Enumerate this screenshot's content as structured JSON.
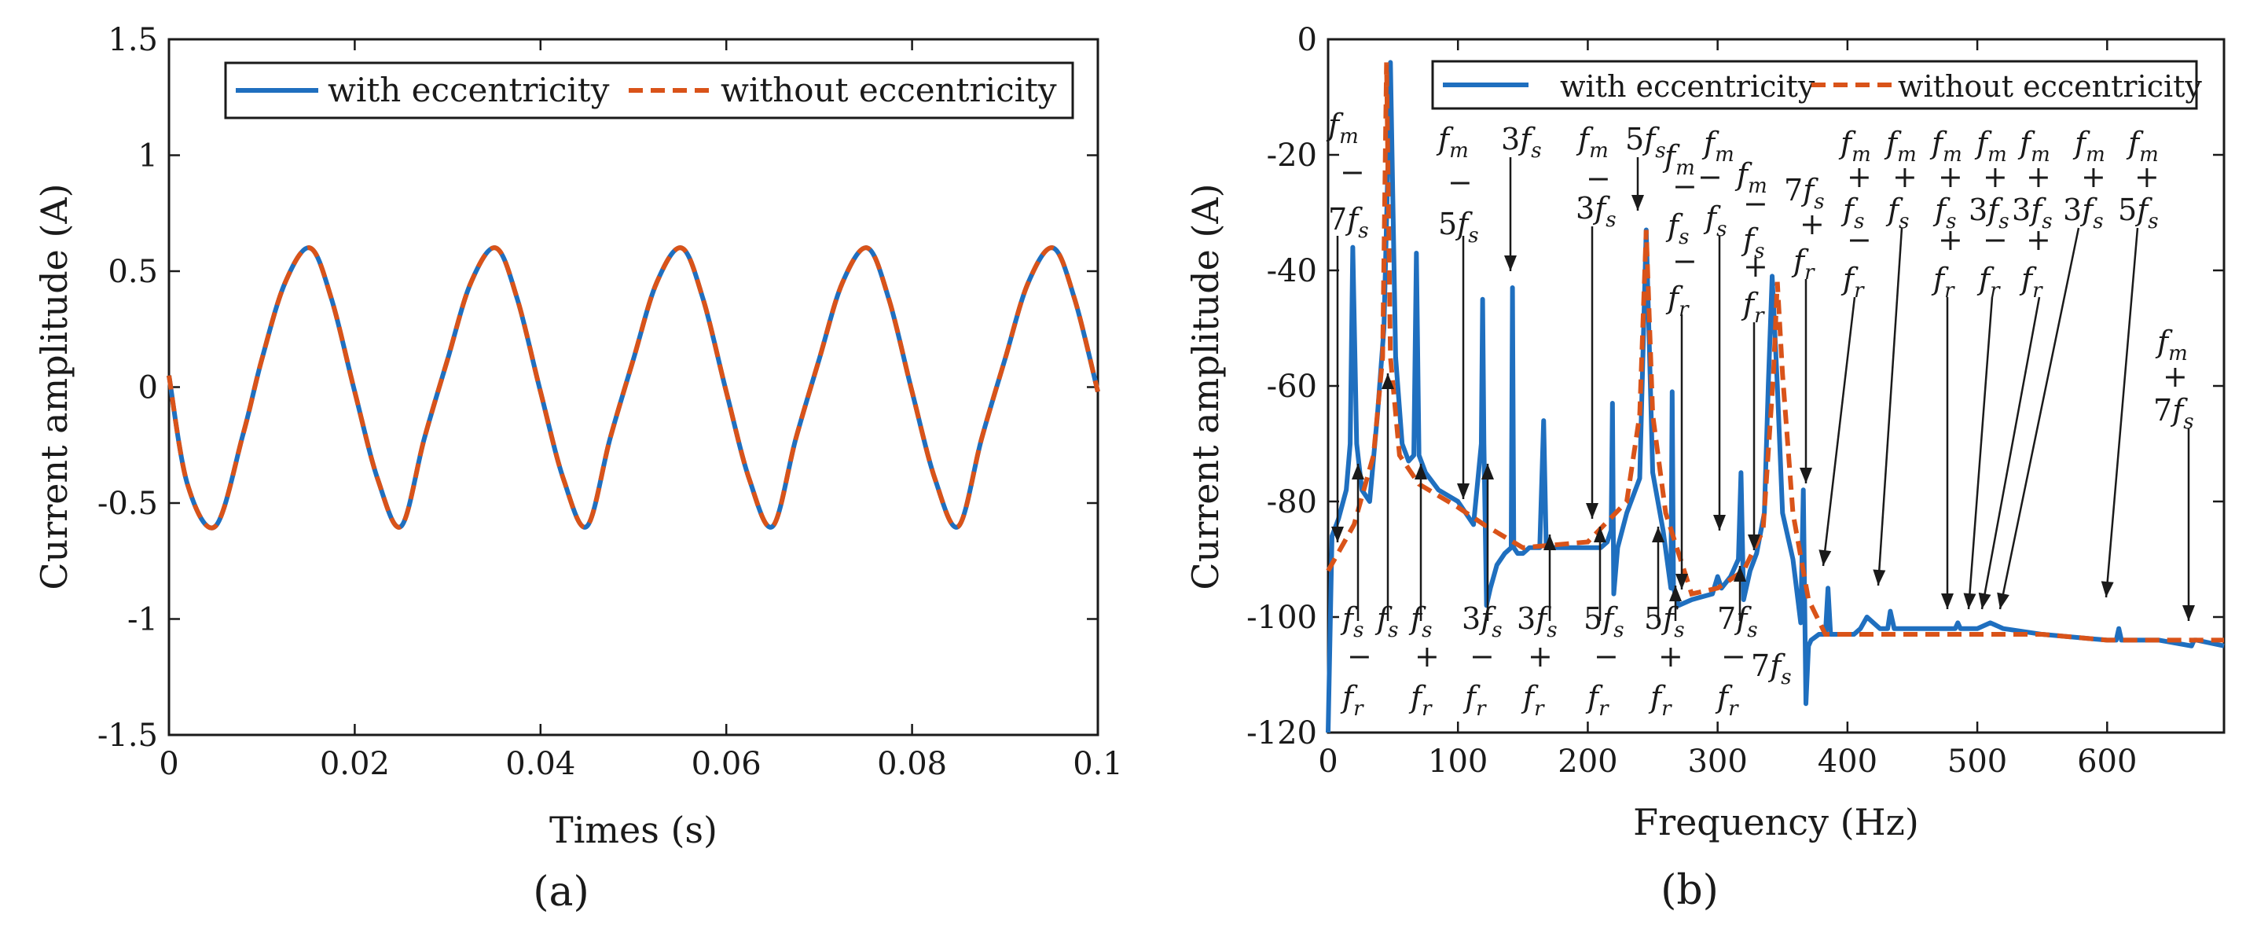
{
  "chart_data": [
    {
      "type": "line",
      "panel_label": "(a)",
      "xlabel": "Times (s)",
      "ylabel": "Current amplitude (A)",
      "xlim": [
        0,
        0.1
      ],
      "ylim": [
        -1.5,
        1.5
      ],
      "xticks": [
        0,
        0.02,
        0.04,
        0.06,
        0.08,
        0.1
      ],
      "xtick_labels": [
        "0",
        "0.02",
        "0.04",
        "0.06",
        "0.08",
        "0.1"
      ],
      "yticks": [
        -1.5,
        -1,
        -0.5,
        0,
        0.5,
        1,
        1.5
      ],
      "ytick_labels": [
        "-1.5",
        "-1",
        "-0.5",
        "0",
        "0.5",
        "1",
        "1.5"
      ],
      "legend_position": "top-right",
      "series": [
        {
          "name": "with eccentricity",
          "color": "#1f6fbf",
          "style": "solid",
          "x": [
            0,
            0.002,
            0.005,
            0.008,
            0.01,
            0.0125,
            0.0152,
            0.0175,
            0.02,
            0.0225,
            0.025,
            0.0275,
            0.03,
            0.0325,
            0.0352,
            0.0375,
            0.04,
            0.0425,
            0.045,
            0.0475,
            0.05,
            0.0525,
            0.0552,
            0.0575,
            0.06,
            0.0625,
            0.065,
            0.0675,
            0.07,
            0.0725,
            0.0752,
            0.0775,
            0.08,
            0.0825,
            0.085,
            0.0875,
            0.09,
            0.0925,
            0.0952,
            0.0975,
            0.1
          ],
          "y": [
            0.05,
            -0.42,
            -0.6,
            -0.2,
            0.12,
            0.45,
            0.6,
            0.38,
            -0.02,
            -0.4,
            -0.6,
            -0.22,
            0.12,
            0.45,
            0.6,
            0.38,
            -0.02,
            -0.4,
            -0.6,
            -0.22,
            0.12,
            0.45,
            0.6,
            0.38,
            -0.02,
            -0.4,
            -0.6,
            -0.22,
            0.12,
            0.45,
            0.6,
            0.38,
            -0.02,
            -0.4,
            -0.6,
            -0.22,
            0.12,
            0.45,
            0.6,
            0.38,
            -0.02
          ]
        },
        {
          "name": "without eccentricity",
          "color": "#d95319",
          "style": "dashed",
          "x": [
            0,
            0.002,
            0.005,
            0.008,
            0.01,
            0.0125,
            0.0152,
            0.0175,
            0.02,
            0.0225,
            0.025,
            0.0275,
            0.03,
            0.0325,
            0.0352,
            0.0375,
            0.04,
            0.0425,
            0.045,
            0.0475,
            0.05,
            0.0525,
            0.0552,
            0.0575,
            0.06,
            0.0625,
            0.065,
            0.0675,
            0.07,
            0.0725,
            0.0752,
            0.0775,
            0.08,
            0.0825,
            0.085,
            0.0875,
            0.09,
            0.0925,
            0.0952,
            0.0975,
            0.1
          ],
          "y": [
            0.05,
            -0.42,
            -0.6,
            -0.2,
            0.12,
            0.45,
            0.6,
            0.38,
            -0.02,
            -0.4,
            -0.6,
            -0.22,
            0.12,
            0.45,
            0.6,
            0.38,
            -0.02,
            -0.4,
            -0.6,
            -0.22,
            0.12,
            0.45,
            0.6,
            0.38,
            -0.02,
            -0.4,
            -0.6,
            -0.22,
            0.12,
            0.45,
            0.6,
            0.38,
            -0.02,
            -0.4,
            -0.6,
            -0.22,
            0.12,
            0.45,
            0.6,
            0.38,
            -0.02
          ]
        }
      ]
    },
    {
      "type": "line",
      "panel_label": "(b)",
      "xlabel": "Frequency (Hz)",
      "ylabel": "Current amplitude (A)",
      "xlim": [
        0,
        690
      ],
      "ylim": [
        -120,
        0
      ],
      "xticks": [
        0,
        100,
        200,
        300,
        400,
        500,
        600
      ],
      "xtick_labels": [
        "0",
        "100",
        "200",
        "300",
        "400",
        "500",
        "600"
      ],
      "yticks": [
        0,
        -20,
        -40,
        -60,
        -80,
        -100,
        -120
      ],
      "ytick_labels": [
        "0",
        "-20",
        "-40",
        "-60",
        "-80",
        "-100",
        "-120"
      ],
      "legend_position": "top",
      "series": [
        {
          "name": "with eccentricity",
          "color": "#1f6fbf",
          "style": "solid",
          "x": [
            0,
            3,
            8,
            14,
            17,
            19,
            22,
            26,
            32,
            38,
            43,
            48,
            52,
            57,
            62,
            66,
            68,
            70,
            75,
            85,
            100,
            112,
            118,
            119,
            120,
            122,
            125,
            130,
            136,
            141,
            142,
            143,
            146,
            150,
            155,
            163,
            166,
            168,
            175,
            190,
            210,
            215,
            218,
            219,
            220,
            223,
            230,
            240,
            245,
            250,
            258,
            264,
            265,
            266,
            270,
            280,
            296,
            300,
            303,
            310,
            316,
            318,
            320,
            325,
            330,
            336,
            339,
            342,
            346,
            350,
            358,
            364,
            366,
            368,
            370,
            372,
            378,
            383,
            385,
            387,
            395,
            405,
            410,
            415,
            425,
            431,
            433,
            436,
            450,
            475,
            483,
            485,
            487,
            500,
            510,
            520,
            550,
            600,
            607,
            609,
            611,
            640,
            665,
            667,
            669,
            690
          ],
          "y": [
            -120,
            -86,
            -83,
            -78,
            -70,
            -36,
            -70,
            -78,
            -80,
            -65,
            -50,
            -4,
            -55,
            -70,
            -73,
            -72,
            -37,
            -72,
            -75,
            -78,
            -80,
            -84,
            -70,
            -45,
            -70,
            -98,
            -95,
            -91,
            -89,
            -88,
            -43,
            -88,
            -89,
            -89,
            -88,
            -88,
            -66,
            -88,
            -88,
            -88,
            -88,
            -87,
            -85,
            -63,
            -96,
            -88,
            -82,
            -76,
            -33,
            -75,
            -85,
            -95,
            -61,
            -95,
            -98,
            -97,
            -96,
            -93,
            -95,
            -93,
            -90,
            -75,
            -97,
            -92,
            -89,
            -82,
            -60,
            -41,
            -60,
            -82,
            -90,
            -101,
            -78,
            -115,
            -105,
            -104,
            -103,
            -103,
            -95,
            -103,
            -103,
            -103,
            -102,
            -100,
            -102,
            -102,
            -99,
            -102,
            -102,
            -102,
            -102,
            -101,
            -102,
            -102,
            -101,
            -102,
            -103,
            -104,
            -104,
            -102,
            -104,
            -104,
            -105,
            -104,
            -104,
            -105
          ]
        },
        {
          "name": "without eccentricity",
          "color": "#d95319",
          "style": "dashed",
          "x": [
            0,
            20,
            35,
            42,
            45,
            48,
            55,
            70,
            100,
            120,
            150,
            200,
            230,
            240,
            245,
            250,
            260,
            280,
            300,
            320,
            335,
            343,
            346,
            350,
            358,
            370,
            383,
            400,
            450,
            500,
            550,
            600,
            650,
            690
          ],
          "y": [
            -92,
            -84,
            -72,
            -55,
            -4,
            -55,
            -72,
            -77,
            -81,
            -84,
            -88,
            -87,
            -80,
            -65,
            -33,
            -65,
            -82,
            -96,
            -95,
            -92,
            -85,
            -58,
            -42,
            -58,
            -82,
            -97,
            -103,
            -103,
            -103,
            -103,
            -103,
            -104,
            -104,
            -104
          ]
        }
      ],
      "annotations": [
        {
          "text": "f_m − 7f_s",
          "lines": [
            "f",
            "m",
            "−",
            "7f",
            "s"
          ]
        },
        {
          "text": "f_m − 5f_s"
        },
        {
          "text": "3f_s"
        },
        {
          "text": "f_m − 3f_s"
        },
        {
          "text": "5f_s"
        },
        {
          "text": "f_m − f_s − f_r"
        },
        {
          "text": "f_m − f_s"
        },
        {
          "text": "f_m − f_s + f_r"
        },
        {
          "text": "7f_s + f_r"
        },
        {
          "text": "f_m + f_s − f_r"
        },
        {
          "text": "f_m + f_s"
        },
        {
          "text": "f_m + f_s + f_r"
        },
        {
          "text": "f_m + 3f_s − f_r"
        },
        {
          "text": "f_m + 3f_s + f_r"
        },
        {
          "text": "f_m + 3f_s"
        },
        {
          "text": "f_m + 5f_s"
        },
        {
          "text": "f_m + 7f_s"
        },
        {
          "text": "f_s − f_r"
        },
        {
          "text": "f_s"
        },
        {
          "text": "f_s + f_r"
        },
        {
          "text": "3f_s − f_r"
        },
        {
          "text": "3f_s + f_r"
        },
        {
          "text": "5f_s − f_r"
        },
        {
          "text": "5f_s + f_r"
        },
        {
          "text": "7f_s − f_r"
        },
        {
          "text": "7f_s"
        }
      ]
    }
  ],
  "labels": {
    "m": "m",
    "s": "s",
    "r": "r",
    "f": "f",
    "minus": "−",
    "plus": "+",
    "f3": "3",
    "f5": "5",
    "f7": "7"
  }
}
